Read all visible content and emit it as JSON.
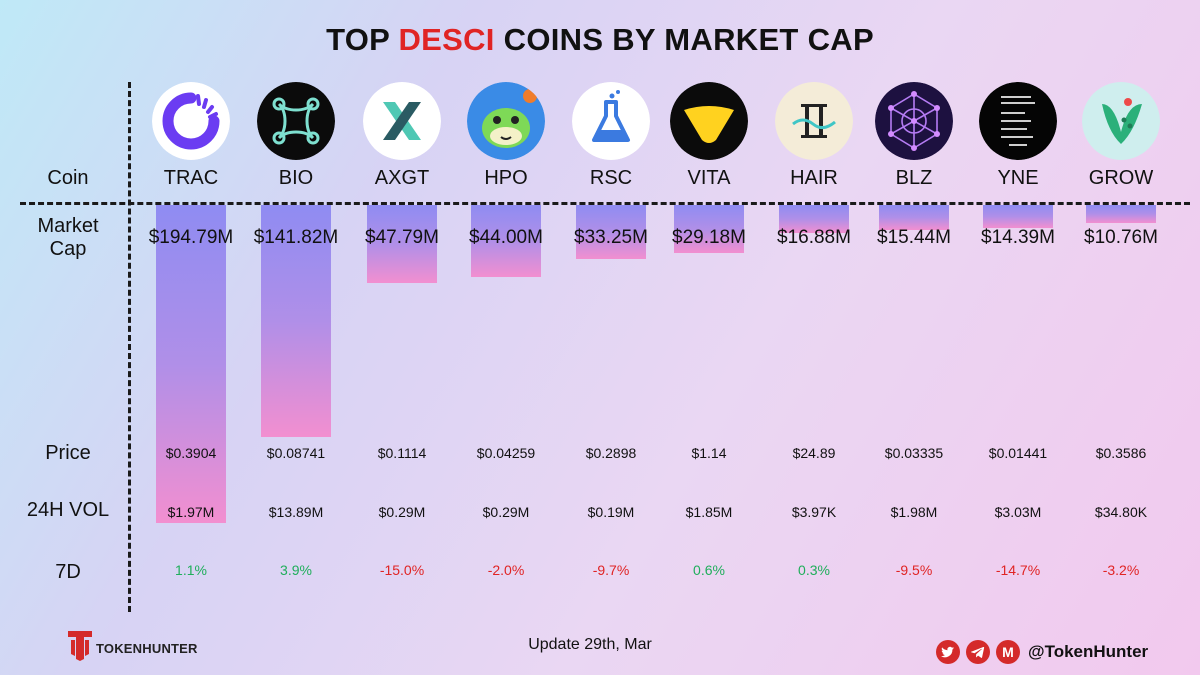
{
  "title": {
    "pre": "TOP ",
    "highlight": "DESCI",
    "post": " COINS BY MARKET CAP"
  },
  "row_labels": {
    "coin": "Coin",
    "market_cap_line1": "Market",
    "market_cap_line2": "Cap",
    "price": "Price",
    "vol": "24H VOL",
    "change": "7D"
  },
  "colors": {
    "positive": "#1fae5b",
    "negative": "#e02424",
    "title_accent": "#e02424",
    "bar_top": "#8f8cf2",
    "bar_bottom": "#f28fd0"
  },
  "chart_data": {
    "type": "bar",
    "title": "TOP DESCI COINS BY MARKET CAP",
    "categories": [
      "TRAC",
      "BIO",
      "AXGT",
      "HPO",
      "RSC",
      "VITA",
      "HAIR",
      "BLZ",
      "YNE",
      "GROW"
    ],
    "series": [
      {
        "values": [
          194.79,
          141.82,
          47.79,
          44.0,
          33.25,
          29.18,
          16.88,
          15.44,
          14.39,
          10.76
        ]
      }
    ],
    "unit": "$M",
    "ylim": [
      0,
      194.79
    ],
    "orientation": "downward"
  },
  "coins": [
    {
      "ticker": "TRAC",
      "icon": "trac-icon",
      "market_cap": "$194.79M",
      "price": "$0.3904",
      "vol": "$1.97M",
      "change": "1.1%",
      "positive": true
    },
    {
      "ticker": "BIO",
      "icon": "bio-icon",
      "market_cap": "$141.82M",
      "price": "$0.08741",
      "vol": "$13.89M",
      "change": "3.9%",
      "positive": true
    },
    {
      "ticker": "AXGT",
      "icon": "axgt-icon",
      "market_cap": "$47.79M",
      "price": "$0.1114",
      "vol": "$0.29M",
      "change": "-15.0%",
      "positive": false
    },
    {
      "ticker": "HPO",
      "icon": "hpo-icon",
      "market_cap": "$44.00M",
      "price": "$0.04259",
      "vol": "$0.29M",
      "change": "-2.0%",
      "positive": false
    },
    {
      "ticker": "RSC",
      "icon": "rsc-icon",
      "market_cap": "$33.25M",
      "price": "$0.2898",
      "vol": "$0.19M",
      "change": "-9.7%",
      "positive": false
    },
    {
      "ticker": "VITA",
      "icon": "vita-icon",
      "market_cap": "$29.18M",
      "price": "$1.14",
      "vol": "$1.85M",
      "change": "0.6%",
      "positive": true
    },
    {
      "ticker": "HAIR",
      "icon": "hair-icon",
      "market_cap": "$16.88M",
      "price": "$24.89",
      "vol": "$3.97K",
      "change": "0.3%",
      "positive": true
    },
    {
      "ticker": "BLZ",
      "icon": "blz-icon",
      "market_cap": "$15.44M",
      "price": "$0.03335",
      "vol": "$1.98M",
      "change": "-9.5%",
      "positive": false
    },
    {
      "ticker": "YNE",
      "icon": "yne-icon",
      "market_cap": "$14.39M",
      "price": "$0.01441",
      "vol": "$3.03M",
      "change": "-14.7%",
      "positive": false
    },
    {
      "ticker": "GROW",
      "icon": "grow-icon",
      "market_cap": "$10.76M",
      "price": "$0.3586",
      "vol": "$34.80K",
      "change": "-3.2%",
      "positive": false
    }
  ],
  "footer": {
    "brand": "TOKENHUNTER",
    "update": "Update 29th, Mar",
    "handle": "@TokenHunter",
    "socials": [
      "twitter-icon",
      "telegram-icon",
      "medium-icon"
    ]
  }
}
